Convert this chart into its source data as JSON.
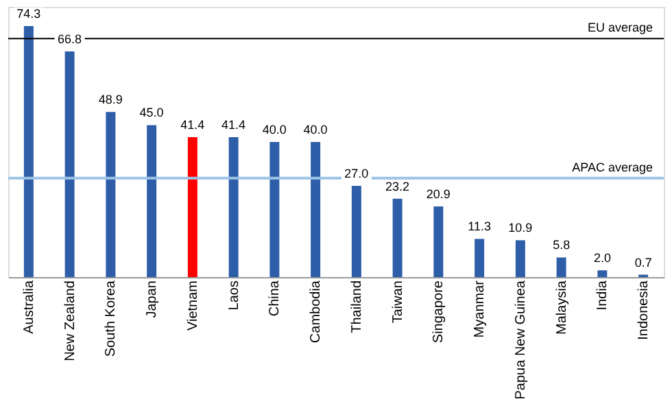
{
  "chart_data": {
    "type": "bar",
    "categories": [
      "Australia",
      "New Zealand",
      "South Korea",
      "Japan",
      "Vietnam",
      "Laos",
      "China",
      "Cambodia",
      "Thailand",
      "Taiwan",
      "Singapore",
      "Myanmar",
      "Papua New Guinea",
      "Malaysia",
      "India",
      "Indonesia"
    ],
    "values": [
      74.3,
      66.8,
      48.9,
      45.0,
      41.4,
      41.4,
      40.0,
      40.0,
      27.0,
      23.2,
      20.9,
      11.3,
      10.9,
      5.8,
      2.0,
      0.7
    ],
    "colors": [
      "#2e5ea8",
      "#2e5ea8",
      "#2e5ea8",
      "#2e5ea8",
      "#ff0000",
      "#2e5ea8",
      "#2e5ea8",
      "#2e5ea8",
      "#2e5ea8",
      "#2e5ea8",
      "#2e5ea8",
      "#2e5ea8",
      "#2e5ea8",
      "#2e5ea8",
      "#2e5ea8",
      "#2e5ea8"
    ],
    "value_labels": [
      "74.3",
      "66.8",
      "48.9",
      "45.0",
      "41.4",
      "41.4",
      "40.0",
      "40.0",
      "27.0",
      "23.2",
      "20.9",
      "11.3",
      "10.9",
      "5.8",
      "2.0",
      "0.7"
    ],
    "ref_lines": [
      {
        "axis": "y",
        "value": 70.6,
        "label": "EU average",
        "color": "#000000"
      },
      {
        "axis": "y",
        "value": 29.3,
        "label": "APAC average",
        "color": "#9dc3e6"
      }
    ],
    "grid": false
  }
}
